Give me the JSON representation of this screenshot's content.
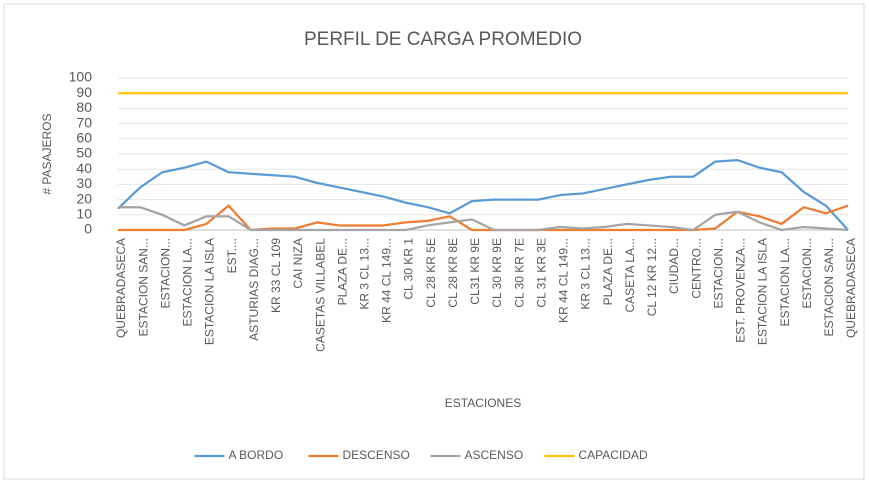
{
  "chart_data": {
    "type": "line",
    "title": "PERFIL DE CARGA PROMEDIO",
    "x_label": "ESTACIONES",
    "y_label": "# PASAJEROS",
    "categories": [
      "QUEBRADASECA",
      "ESTACION SAN...",
      "ESTACION...",
      "ESTACION LA...",
      "ESTACION LA ISLA",
      "EST....",
      "ASTURIAS DIAG...",
      "KR 33 CL 109",
      "CAI NIZA",
      "CASETAS VILLABEL",
      "PLAZA DE...",
      "KR 3 CL 13...",
      "KR 44 CL 149...",
      "CL 30 KR 1",
      "CL 28 KR 5E",
      "CL 28 KR 8E",
      "CL31 KR 9E",
      "CL 30 KR 9E",
      "CL 30 KR 7E",
      "CL 31 KR 3E",
      "KR 44 CL 149...",
      "KR 3 CL 13...",
      "PLAZA DE...",
      "CASETA LA...",
      "CL 12 KR 12...",
      "CIUDAD...",
      "CENTRO...",
      "ESTACION...",
      "EST. PROVENZA...",
      "ESTACION LA ISLA",
      "ESTACION LA...",
      "ESTACION...",
      "ESTACION SAN...",
      "QUEBRADASECA"
    ],
    "series": [
      {
        "name": "A BORDO",
        "color": "#5b9bd5",
        "values": [
          14,
          28,
          38,
          41,
          45,
          38,
          37,
          36,
          35,
          31,
          28,
          25,
          22,
          18,
          15,
          11,
          19,
          20,
          20,
          20,
          23,
          24,
          27,
          30,
          33,
          35,
          35,
          45,
          46,
          41,
          38,
          25,
          16,
          0
        ]
      },
      {
        "name": "DESCENSO",
        "color": "#ed7d31",
        "values": [
          0,
          0,
          0,
          0,
          4,
          16,
          0,
          1,
          1,
          5,
          3,
          3,
          3,
          5,
          6,
          9,
          0,
          0,
          0,
          0,
          0,
          0,
          0,
          0,
          0,
          0,
          0,
          1,
          12,
          9,
          4,
          15,
          11,
          16
        ]
      },
      {
        "name": "ASCENSO",
        "color": "#a5a5a5",
        "values": [
          15,
          15,
          10,
          3,
          9,
          9,
          0,
          0,
          0,
          0,
          0,
          0,
          0,
          0,
          3,
          5,
          7,
          0,
          0,
          0,
          2,
          1,
          2,
          4,
          3,
          2,
          0,
          10,
          12,
          5,
          0,
          2,
          1,
          0
        ]
      },
      {
        "name": "CAPACIDAD",
        "color": "#ffc000",
        "values": [
          90,
          90,
          90,
          90,
          90,
          90,
          90,
          90,
          90,
          90,
          90,
          90,
          90,
          90,
          90,
          90,
          90,
          90,
          90,
          90,
          90,
          90,
          90,
          90,
          90,
          90,
          90,
          90,
          90,
          90,
          90,
          90,
          90,
          90
        ]
      }
    ],
    "ylim": [
      0,
      100
    ],
    "yticks": [
      0,
      10,
      20,
      30,
      40,
      50,
      60,
      70,
      80,
      90,
      100
    ],
    "grid": true,
    "legend": "bottom"
  }
}
